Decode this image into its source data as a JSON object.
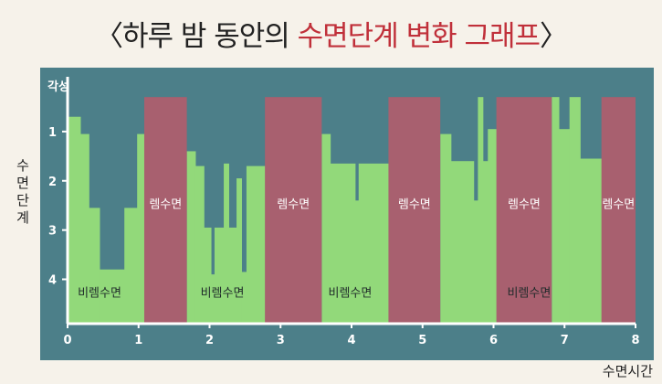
{
  "title": {
    "prefix": "〈하루 밤 동안의 ",
    "highlight": "수면단계 변화 그래프",
    "suffix": "〉"
  },
  "colors": {
    "panel": "#4c7f89",
    "nrem": "#92d97a",
    "rem": "#a8606f",
    "axis": "#ffffff",
    "title_highlight": "#c0303a"
  },
  "chart_data": {
    "type": "area",
    "title": "수면단계 변화 그래프",
    "xlabel": "수면시간",
    "ylabel": "수면단계",
    "xlim": [
      0,
      8
    ],
    "ylim": [
      0,
      4.9
    ],
    "top_label": "각성",
    "x_ticks": [
      "0",
      "1",
      "2",
      "3",
      "4",
      "5",
      "6",
      "7",
      "8"
    ],
    "y_ticks": [
      "1",
      "2",
      "3",
      "4"
    ],
    "nrem_label": "비렘수면",
    "rem_label": "렘수면",
    "nrem_steps": [
      {
        "x0": 0.0,
        "x1": 0.18,
        "y": 0.7
      },
      {
        "x0": 0.18,
        "x1": 0.3,
        "y": 1.05
      },
      {
        "x0": 0.3,
        "x1": 0.45,
        "y": 2.55
      },
      {
        "x0": 0.45,
        "x1": 0.8,
        "y": 3.8
      },
      {
        "x0": 0.8,
        "x1": 0.98,
        "y": 2.55
      },
      {
        "x0": 0.98,
        "x1": 1.08,
        "y": 1.05
      },
      {
        "x0": 1.68,
        "x1": 1.8,
        "y": 1.4
      },
      {
        "x0": 1.8,
        "x1": 1.92,
        "y": 1.7
      },
      {
        "x0": 1.92,
        "x1": 2.02,
        "y": 2.95
      },
      {
        "x0": 2.02,
        "x1": 2.07,
        "y": 3.9
      },
      {
        "x0": 2.07,
        "x1": 2.2,
        "y": 2.95
      },
      {
        "x0": 2.2,
        "x1": 2.27,
        "y": 1.65
      },
      {
        "x0": 2.27,
        "x1": 2.38,
        "y": 2.95
      },
      {
        "x0": 2.38,
        "x1": 2.45,
        "y": 1.95
      },
      {
        "x0": 2.45,
        "x1": 2.52,
        "y": 3.85
      },
      {
        "x0": 2.52,
        "x1": 2.78,
        "y": 1.7
      },
      {
        "x0": 3.58,
        "x1": 3.7,
        "y": 1.05
      },
      {
        "x0": 3.7,
        "x1": 4.05,
        "y": 1.65
      },
      {
        "x0": 4.05,
        "x1": 4.1,
        "y": 2.4
      },
      {
        "x0": 4.1,
        "x1": 4.52,
        "y": 1.65
      },
      {
        "x0": 5.25,
        "x1": 5.4,
        "y": 1.05
      },
      {
        "x0": 5.4,
        "x1": 5.72,
        "y": 1.6
      },
      {
        "x0": 5.72,
        "x1": 5.78,
        "y": 2.4
      },
      {
        "x0": 5.78,
        "x1": 5.85,
        "y": 0.3
      },
      {
        "x0": 5.85,
        "x1": 5.92,
        "y": 1.6
      },
      {
        "x0": 5.92,
        "x1": 6.04,
        "y": 0.95
      },
      {
        "x0": 6.82,
        "x1": 6.92,
        "y": 0.3
      },
      {
        "x0": 6.92,
        "x1": 7.07,
        "y": 0.95
      },
      {
        "x0": 7.07,
        "x1": 7.22,
        "y": 0.3
      },
      {
        "x0": 7.22,
        "x1": 7.52,
        "y": 1.55
      }
    ],
    "rem_periods": [
      {
        "x0": 1.08,
        "x1": 1.68
      },
      {
        "x0": 2.78,
        "x1": 3.58
      },
      {
        "x0": 4.52,
        "x1": 5.25
      },
      {
        "x0": 6.04,
        "x1": 6.82
      },
      {
        "x0": 7.52,
        "x1": 8.0
      }
    ],
    "nrem_label_positions": [
      0.45,
      2.18,
      3.98,
      6.5
    ],
    "grid": false,
    "legend": "none"
  }
}
